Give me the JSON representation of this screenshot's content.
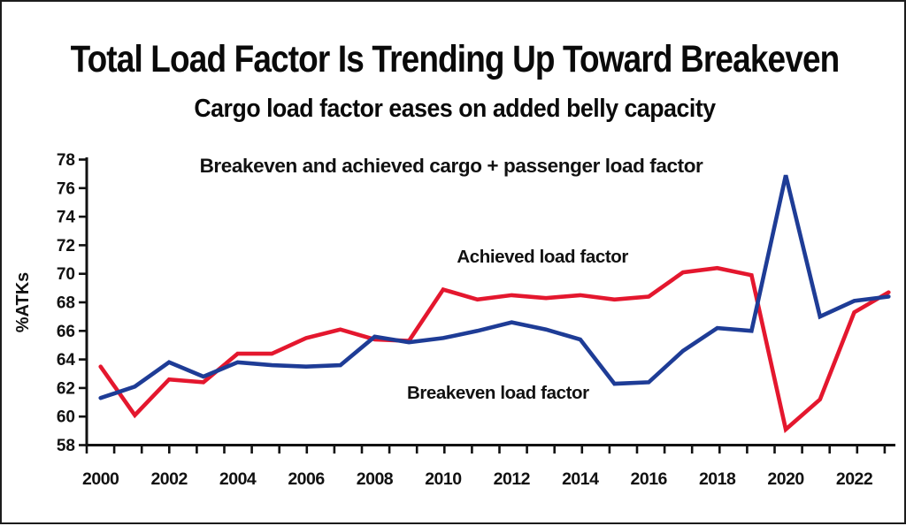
{
  "header": {
    "title": "Total Load Factor Is Trending Up Toward Breakeven",
    "subtitle": "Cargo load factor eases on added belly capacity"
  },
  "chart_data": {
    "type": "line",
    "title": "Breakeven and achieved cargo + passenger load factor",
    "xlabel": "",
    "ylabel": "%ATKs",
    "ylim": [
      58,
      78
    ],
    "ytick_step": 2,
    "grid": false,
    "legend_position": "inline-annotations",
    "x": [
      2000,
      2001,
      2002,
      2003,
      2004,
      2005,
      2006,
      2007,
      2008,
      2009,
      2010,
      2011,
      2012,
      2013,
      2014,
      2015,
      2016,
      2017,
      2018,
      2019,
      2020,
      2021,
      2022,
      2023
    ],
    "xtick_labels": [
      "2000",
      "2002",
      "2004",
      "2006",
      "2008",
      "2010",
      "2012",
      "2014",
      "2016",
      "2018",
      "2020",
      "2022"
    ],
    "series": [
      {
        "name": "Achieved load factor",
        "color": "#e4172e",
        "values": [
          63.5,
          60.1,
          62.6,
          62.4,
          64.4,
          64.4,
          65.5,
          66.1,
          65.4,
          65.3,
          68.9,
          68.2,
          68.5,
          68.3,
          68.5,
          68.2,
          68.4,
          70.1,
          70.4,
          69.9,
          59.1,
          61.2,
          67.3,
          68.7
        ]
      },
      {
        "name": "Breakeven load factor",
        "color": "#1e3c96",
        "values": [
          61.3,
          62.1,
          63.8,
          62.8,
          63.8,
          63.6,
          63.5,
          63.6,
          65.6,
          65.2,
          65.5,
          66.0,
          66.6,
          66.1,
          65.4,
          62.3,
          62.4,
          64.6,
          66.2,
          66.0,
          76.9,
          67.0,
          68.1,
          68.4
        ]
      }
    ],
    "annotations": [
      {
        "text": "Achieved load factor",
        "color": "#e4172e",
        "x": 2012.9,
        "y": 70.8
      },
      {
        "text": "Breakeven load factor",
        "color": "#1e3c96",
        "x": 2011.6,
        "y": 61.25
      }
    ]
  },
  "colors": {
    "achieved": "#e4172e",
    "breakeven": "#1e3c96",
    "text": "#0d0d0d",
    "background": "#ffffff",
    "border": "#1c1c1c"
  }
}
